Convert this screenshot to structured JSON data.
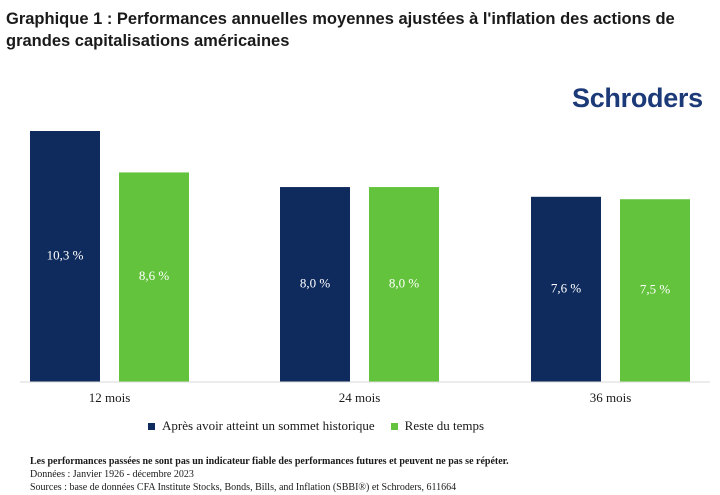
{
  "title": "Graphique 1 : Performances annuelles moyennes ajustées à l'inflation des actions de grandes capitalisations américaines",
  "logo": "Schroders",
  "colors": {
    "series1": "#0f2b5e",
    "series2": "#63c33c",
    "logo": "#1c3a78"
  },
  "chart_data": {
    "type": "bar",
    "title": "Graphique 1 : Performances annuelles moyennes ajustées à l'inflation des actions de grandes capitalisations américaines",
    "categories": [
      "12 mois",
      "24 mois",
      "36 mois"
    ],
    "series": [
      {
        "name": "Après avoir atteint un sommet historique",
        "values": [
          10.3,
          8.0,
          7.6
        ],
        "labels": [
          "10,3 %",
          "8,0 %",
          "7,6 %"
        ]
      },
      {
        "name": "Reste du temps",
        "values": [
          8.6,
          8.0,
          7.5
        ],
        "labels": [
          "8,6 %",
          "8,0 %",
          "7,5 %"
        ]
      }
    ],
    "ylim": [
      0,
      10.3
    ],
    "grid": false,
    "legend": "bottom",
    "xlabel": "",
    "ylabel": ""
  },
  "legend": {
    "items": [
      {
        "label": "Après avoir atteint un sommet historique"
      },
      {
        "label": "Reste du temps"
      }
    ]
  },
  "notes": {
    "disclaimer": "Les performances passées ne sont pas un indicateur fiable des performances futures et peuvent ne pas se répéter.",
    "data_period": "Données : Janvier 1926 - décembre 2023",
    "sources": "Sources : base de données CFA Institute Stocks, Bonds, Bills, and Inflation (SBBI®) et Schroders, 611664"
  }
}
